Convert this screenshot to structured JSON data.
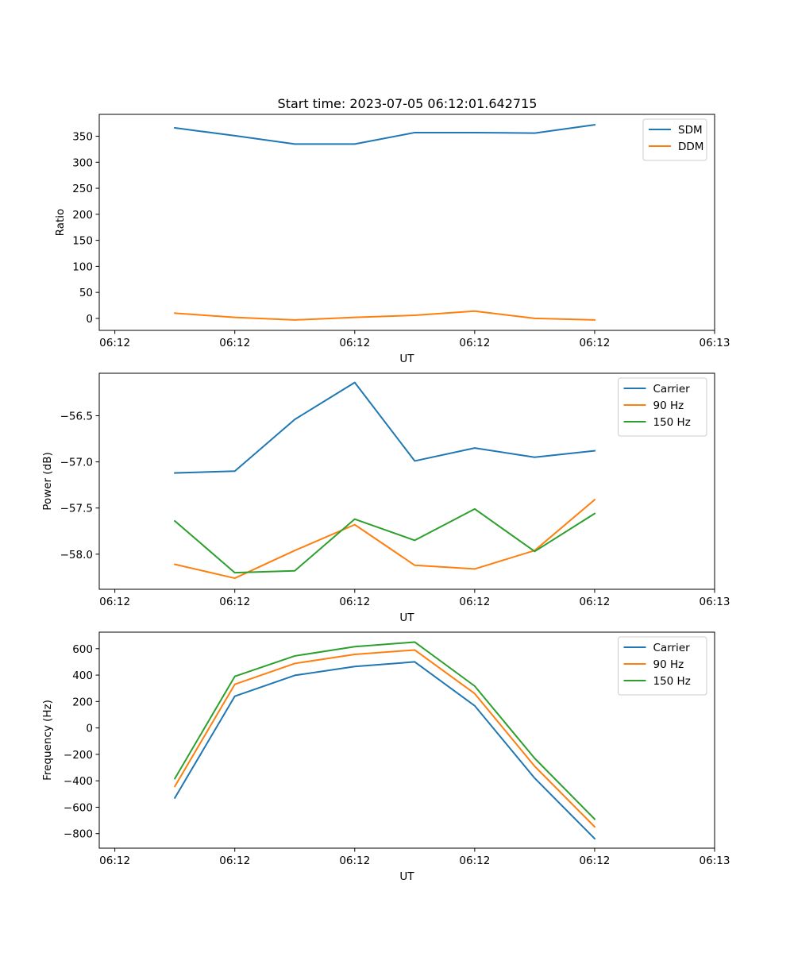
{
  "figure_title": "Start time: 2023-07-05 06:12:01.642715",
  "colors": {
    "blue": "#1f77b4",
    "orange": "#ff7f0e",
    "green": "#2ca02c"
  },
  "chart_data": [
    {
      "type": "line",
      "title": "Start time: 2023-07-05 06:12:01.642715",
      "xlabel": "UT",
      "ylabel": "Ratio",
      "x": [
        0.5,
        1.0,
        1.5,
        2.0,
        2.5,
        3.0,
        3.5,
        4.0
      ],
      "xlim": [
        -0.13,
        5.0
      ],
      "x_ticks": [
        0,
        1,
        2,
        3,
        4,
        5
      ],
      "x_tick_labels": [
        "06:12",
        "06:12",
        "06:12",
        "06:12",
        "06:12",
        "06:13"
      ],
      "ylim": [
        -23,
        392
      ],
      "y_ticks": [
        0,
        50,
        100,
        150,
        200,
        250,
        300,
        350
      ],
      "y_tick_labels": [
        "0",
        "50",
        "100",
        "150",
        "200",
        "250",
        "300",
        "350"
      ],
      "legend_position": "top-right",
      "series": [
        {
          "name": "SDM",
          "color": "#1f77b4",
          "values": [
            366,
            351,
            335,
            335,
            357,
            357,
            356,
            372
          ]
        },
        {
          "name": "DDM",
          "color": "#ff7f0e",
          "values": [
            10,
            2,
            -3,
            2,
            6,
            14,
            0,
            -3
          ]
        }
      ]
    },
    {
      "type": "line",
      "title": "",
      "xlabel": "UT",
      "ylabel": "Power (dB)",
      "x": [
        0.5,
        1.0,
        1.5,
        2.0,
        2.5,
        3.0,
        3.5,
        4.0
      ],
      "xlim": [
        -0.13,
        5.0
      ],
      "x_ticks": [
        0,
        1,
        2,
        3,
        4,
        5
      ],
      "x_tick_labels": [
        "06:12",
        "06:12",
        "06:12",
        "06:12",
        "06:12",
        "06:13"
      ],
      "ylim": [
        -58.38,
        -56.04
      ],
      "y_ticks": [
        -58.0,
        -57.5,
        -57.0,
        -56.5
      ],
      "y_tick_labels": [
        "−58.0",
        "−57.5",
        "−57.0",
        "−56.5"
      ],
      "legend_position": "top-right",
      "series": [
        {
          "name": "Carrier",
          "color": "#1f77b4",
          "values": [
            -57.12,
            -57.1,
            -56.54,
            -56.14,
            -56.99,
            -56.85,
            -56.95,
            -56.88
          ]
        },
        {
          "name": "90 Hz",
          "color": "#ff7f0e",
          "values": [
            -58.11,
            -58.26,
            -57.96,
            -57.68,
            -58.12,
            -58.16,
            -57.96,
            -57.41
          ]
        },
        {
          "name": "150 Hz",
          "color": "#2ca02c",
          "values": [
            -57.64,
            -58.2,
            -58.18,
            -57.62,
            -57.85,
            -57.51,
            -57.97,
            -57.56
          ]
        }
      ]
    },
    {
      "type": "line",
      "title": "",
      "xlabel": "UT",
      "ylabel": "Frequency (Hz)",
      "x": [
        0.5,
        1.0,
        1.5,
        2.0,
        2.5,
        3.0,
        3.5,
        4.0
      ],
      "xlim": [
        -0.13,
        5.0
      ],
      "x_ticks": [
        0,
        1,
        2,
        3,
        4,
        5
      ],
      "x_tick_labels": [
        "06:12",
        "06:12",
        "06:12",
        "06:12",
        "06:12",
        "06:13"
      ],
      "ylim": [
        -910,
        725
      ],
      "y_ticks": [
        -800,
        -600,
        -400,
        -200,
        0,
        200,
        400,
        600
      ],
      "y_tick_labels": [
        "−800",
        "−600",
        "−400",
        "−200",
        "0",
        "200",
        "400",
        "600"
      ],
      "legend_position": "top-right",
      "series": [
        {
          "name": "Carrier",
          "color": "#1f77b4",
          "values": [
            -530,
            240,
            398,
            465,
            500,
            168,
            -380,
            -838
          ]
        },
        {
          "name": "90 Hz",
          "color": "#ff7f0e",
          "values": [
            -443,
            330,
            488,
            557,
            590,
            260,
            -290,
            -748
          ]
        },
        {
          "name": "150 Hz",
          "color": "#2ca02c",
          "values": [
            -383,
            390,
            545,
            615,
            650,
            317,
            -230,
            -690
          ]
        }
      ]
    }
  ]
}
